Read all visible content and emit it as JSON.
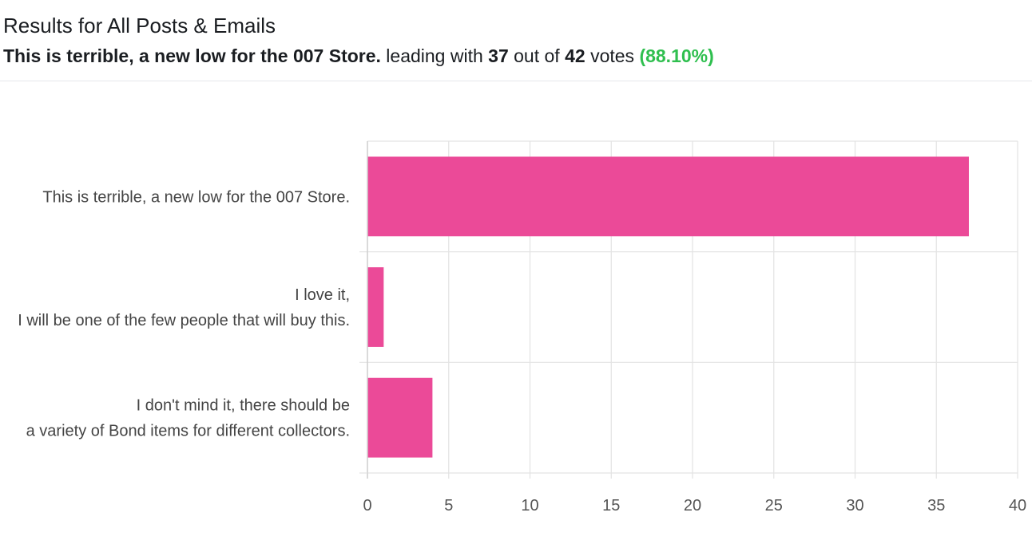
{
  "header": {
    "title": "Results for All Posts & Emails",
    "leading_option": "This is terrible, a new low for the 007 Store.",
    "leading_with_text": "leading with",
    "leading_count": "37",
    "out_of_text": "out of",
    "total_votes": "42",
    "votes_text": "votes",
    "percentage": "(88.10%)"
  },
  "colors": {
    "bar": "#eb4a98",
    "grid": "#e3e3e3",
    "label_text": "#444444",
    "tick_text": "#555555",
    "percentage": "#2fbf4f"
  },
  "chart_data": {
    "type": "bar",
    "orientation": "horizontal",
    "title": "",
    "xlabel": "",
    "ylabel": "",
    "categories": [
      [
        "This is terrible, a new low for the 007 Store."
      ],
      [
        "I love it,",
        "I will be one of the few people that will buy this."
      ],
      [
        "I don't mind it, there should be",
        "a variety of Bond items for different collectors."
      ]
    ],
    "values": [
      37,
      1,
      4
    ],
    "xlim": [
      0,
      40
    ],
    "xticks": [
      "0",
      "5",
      "10",
      "15",
      "20",
      "25",
      "30",
      "35",
      "40"
    ],
    "grid": true,
    "legend": "none"
  }
}
